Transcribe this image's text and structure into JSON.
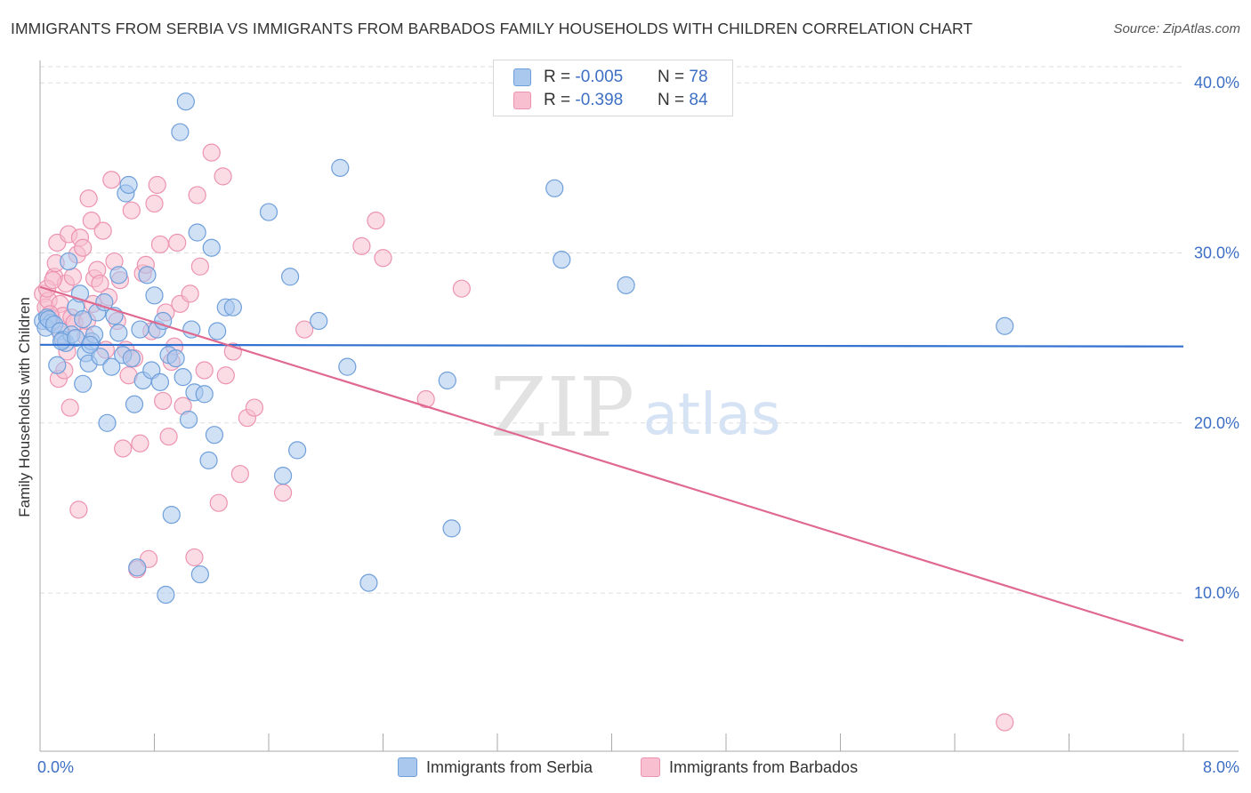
{
  "header": {
    "title": "IMMIGRANTS FROM SERBIA VS IMMIGRANTS FROM BARBADOS FAMILY HOUSEHOLDS WITH CHILDREN CORRELATION CHART",
    "source": "Source: ZipAtlas.com"
  },
  "legend": {
    "serbia": {
      "r_label": "R = ",
      "r_value": "-0.005",
      "n_label": "N = ",
      "n_value": "78"
    },
    "barbados": {
      "r_label": "R = ",
      "r_value": "-0.398",
      "n_label": "N = ",
      "n_value": "84"
    }
  },
  "watermark": {
    "zip": "ZIP",
    "atlas": "atlas"
  },
  "colors": {
    "serbia_fill": "#aac8ee",
    "serbia_stroke": "#6f9fda",
    "serbia_line": "#2f6fcf",
    "barbados_fill": "#f7bfd0",
    "barbados_stroke": "#ec93b1",
    "barbados_line": "#e0698f",
    "tick_label": "#3d6fc4",
    "grid": "#dddddd"
  },
  "chart_data": {
    "type": "scatter",
    "title": "IMMIGRANTS FROM SERBIA VS IMMIGRANTS FROM BARBADOS FAMILY HOUSEHOLDS WITH CHILDREN CORRELATION CHART",
    "xlabel": "",
    "ylabel": "Family Households with Children",
    "xlim": [
      0,
      8
    ],
    "ylim": [
      0,
      41
    ],
    "x_tick_labels": [
      "0.0%",
      "8.0%"
    ],
    "y_ticks": [
      10,
      20,
      30,
      40
    ],
    "y_tick_labels": [
      "10.0%",
      "20.0%",
      "30.0%",
      "40.0%"
    ],
    "grid": true,
    "legend_position": "top-center",
    "series": [
      {
        "name": "Immigrants from Serbia",
        "r": -0.005,
        "n": 78,
        "trend": {
          "x": [
            0,
            8
          ],
          "y": [
            24.6,
            24.5
          ]
        },
        "points": [
          [
            0.02,
            26.0
          ],
          [
            0.05,
            26.2
          ],
          [
            0.08,
            25.9
          ],
          [
            0.04,
            25.6
          ],
          [
            0.06,
            26.1
          ],
          [
            0.1,
            25.8
          ],
          [
            0.12,
            23.4
          ],
          [
            0.14,
            25.4
          ],
          [
            0.16,
            24.9
          ],
          [
            0.18,
            24.7
          ],
          [
            0.2,
            29.5
          ],
          [
            0.22,
            25.2
          ],
          [
            0.25,
            26.8
          ],
          [
            0.28,
            27.6
          ],
          [
            0.3,
            22.3
          ],
          [
            0.32,
            24.1
          ],
          [
            0.34,
            23.5
          ],
          [
            0.36,
            24.8
          ],
          [
            0.38,
            25.2
          ],
          [
            0.4,
            26.5
          ],
          [
            0.42,
            23.9
          ],
          [
            0.45,
            27.1
          ],
          [
            0.47,
            20.0
          ],
          [
            0.5,
            23.3
          ],
          [
            0.52,
            26.3
          ],
          [
            0.55,
            28.7
          ],
          [
            0.58,
            24.0
          ],
          [
            0.6,
            33.5
          ],
          [
            0.62,
            34.0
          ],
          [
            0.64,
            23.8
          ],
          [
            0.66,
            21.1
          ],
          [
            0.68,
            11.5
          ],
          [
            0.7,
            25.5
          ],
          [
            0.72,
            22.5
          ],
          [
            0.75,
            28.7
          ],
          [
            0.78,
            23.1
          ],
          [
            0.8,
            27.5
          ],
          [
            0.82,
            25.5
          ],
          [
            0.84,
            22.4
          ],
          [
            0.86,
            26.0
          ],
          [
            0.88,
            9.9
          ],
          [
            0.9,
            24.0
          ],
          [
            0.92,
            14.6
          ],
          [
            0.95,
            23.8
          ],
          [
            0.98,
            37.1
          ],
          [
            1.0,
            22.7
          ],
          [
            1.02,
            38.9
          ],
          [
            1.04,
            20.2
          ],
          [
            1.06,
            25.5
          ],
          [
            1.08,
            21.8
          ],
          [
            1.1,
            31.2
          ],
          [
            1.12,
            11.1
          ],
          [
            1.15,
            21.7
          ],
          [
            1.18,
            17.8
          ],
          [
            1.2,
            30.3
          ],
          [
            1.22,
            19.3
          ],
          [
            1.24,
            25.4
          ],
          [
            1.3,
            26.8
          ],
          [
            1.35,
            26.8
          ],
          [
            1.6,
            32.4
          ],
          [
            1.7,
            16.9
          ],
          [
            1.75,
            28.6
          ],
          [
            1.8,
            18.4
          ],
          [
            1.95,
            26.0
          ],
          [
            2.1,
            35.0
          ],
          [
            2.15,
            23.3
          ],
          [
            2.3,
            10.6
          ],
          [
            2.85,
            22.5
          ],
          [
            2.88,
            13.8
          ],
          [
            3.6,
            33.8
          ],
          [
            3.65,
            29.6
          ],
          [
            4.1,
            28.1
          ],
          [
            6.75,
            25.7
          ],
          [
            0.15,
            24.8
          ],
          [
            0.25,
            25.0
          ],
          [
            0.35,
            24.6
          ],
          [
            0.55,
            25.3
          ],
          [
            0.3,
            26.1
          ]
        ]
      },
      {
        "name": "Immigrants from Barbados",
        "r": -0.398,
        "n": 84,
        "trend": {
          "x": [
            0,
            8
          ],
          "y": [
            28.0,
            7.2
          ]
        },
        "points": [
          [
            0.02,
            27.6
          ],
          [
            0.04,
            26.8
          ],
          [
            0.06,
            27.2
          ],
          [
            0.08,
            26.2
          ],
          [
            0.1,
            28.6
          ],
          [
            0.12,
            30.6
          ],
          [
            0.14,
            27.0
          ],
          [
            0.16,
            26.3
          ],
          [
            0.18,
            28.2
          ],
          [
            0.2,
            31.1
          ],
          [
            0.22,
            26.2
          ],
          [
            0.24,
            25.9
          ],
          [
            0.26,
            29.9
          ],
          [
            0.28,
            30.9
          ],
          [
            0.3,
            30.3
          ],
          [
            0.32,
            25.1
          ],
          [
            0.34,
            33.2
          ],
          [
            0.36,
            31.9
          ],
          [
            0.38,
            28.5
          ],
          [
            0.4,
            29.0
          ],
          [
            0.42,
            28.2
          ],
          [
            0.44,
            31.3
          ],
          [
            0.46,
            24.3
          ],
          [
            0.48,
            27.4
          ],
          [
            0.5,
            34.3
          ],
          [
            0.52,
            29.5
          ],
          [
            0.54,
            26.0
          ],
          [
            0.56,
            28.4
          ],
          [
            0.58,
            18.5
          ],
          [
            0.6,
            24.3
          ],
          [
            0.62,
            22.8
          ],
          [
            0.64,
            32.5
          ],
          [
            0.66,
            23.8
          ],
          [
            0.68,
            11.4
          ],
          [
            0.7,
            18.8
          ],
          [
            0.72,
            28.8
          ],
          [
            0.74,
            29.3
          ],
          [
            0.76,
            12.0
          ],
          [
            0.78,
            25.4
          ],
          [
            0.8,
            32.9
          ],
          [
            0.82,
            34.0
          ],
          [
            0.84,
            30.5
          ],
          [
            0.86,
            21.3
          ],
          [
            0.88,
            26.5
          ],
          [
            0.9,
            19.2
          ],
          [
            0.92,
            23.6
          ],
          [
            0.94,
            24.5
          ],
          [
            0.96,
            30.6
          ],
          [
            0.98,
            27.0
          ],
          [
            1.0,
            21.0
          ],
          [
            1.05,
            27.6
          ],
          [
            1.08,
            12.1
          ],
          [
            1.1,
            33.4
          ],
          [
            1.12,
            29.2
          ],
          [
            1.15,
            23.1
          ],
          [
            1.2,
            35.9
          ],
          [
            1.25,
            15.3
          ],
          [
            1.28,
            34.5
          ],
          [
            1.3,
            22.8
          ],
          [
            1.35,
            24.2
          ],
          [
            1.4,
            17.0
          ],
          [
            1.45,
            20.3
          ],
          [
            1.5,
            20.9
          ],
          [
            1.7,
            15.9
          ],
          [
            1.85,
            25.5
          ],
          [
            2.25,
            30.4
          ],
          [
            2.35,
            31.9
          ],
          [
            2.4,
            29.7
          ],
          [
            2.7,
            21.4
          ],
          [
            2.95,
            27.9
          ],
          [
            6.75,
            2.4
          ],
          [
            0.05,
            27.9
          ],
          [
            0.07,
            26.4
          ],
          [
            0.09,
            28.4
          ],
          [
            0.11,
            29.4
          ],
          [
            0.13,
            22.6
          ],
          [
            0.15,
            25.2
          ],
          [
            0.17,
            23.1
          ],
          [
            0.19,
            24.2
          ],
          [
            0.21,
            20.9
          ],
          [
            0.23,
            28.6
          ],
          [
            0.27,
            14.9
          ],
          [
            0.33,
            26.0
          ],
          [
            0.37,
            27.0
          ]
        ]
      }
    ]
  },
  "bottom_legend": {
    "serbia": "Immigrants from Serbia",
    "barbados": "Immigrants from Barbados"
  }
}
